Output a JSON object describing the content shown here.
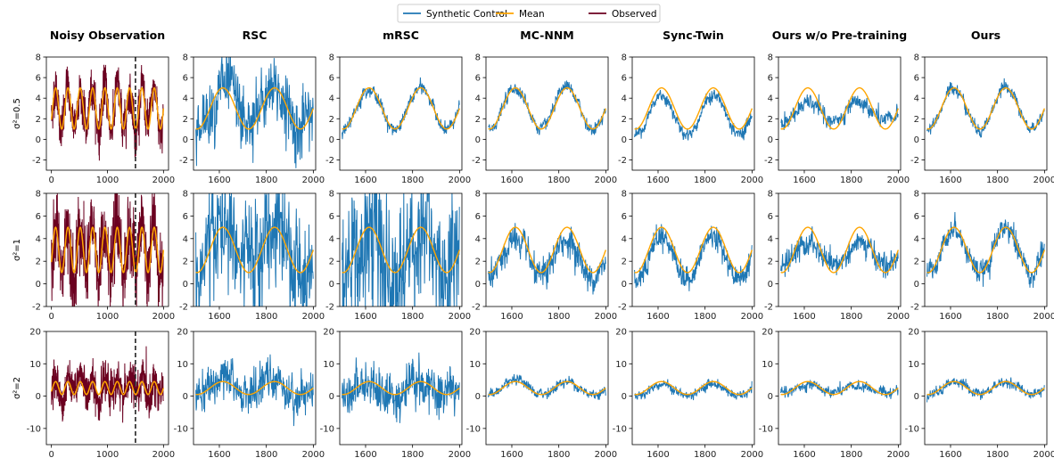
{
  "colors": {
    "synthetic": "#1f77b4",
    "mean": "#ffa500",
    "observed": "#6b0020",
    "divider": "#222222"
  },
  "legend": [
    "Synthetic Control",
    "Mean",
    "Observed"
  ],
  "columns": [
    "Noisy Observation",
    "RSC",
    "mRSC",
    "MC-NNM",
    "Sync-Twin",
    "Ours w/o Pre-training",
    "Ours"
  ],
  "rows": [
    {
      "label": "σ²=0.5",
      "ylim": [
        -3,
        8
      ],
      "yticks": [
        -2,
        0,
        2,
        4,
        6,
        8
      ]
    },
    {
      "label": "σ²=1",
      "ylim": [
        -2,
        8
      ],
      "yticks": [
        -2,
        0,
        2,
        4,
        6,
        8
      ]
    },
    {
      "label": "σ²=2",
      "ylim": [
        -15,
        20
      ],
      "yticks": [
        -10,
        0,
        10,
        20
      ]
    }
  ],
  "chart_data": {
    "type": "line",
    "layout": "grid 3x7",
    "legend_placement": "top-center",
    "first_column": {
      "xlim": [
        0,
        2000
      ],
      "xticks": [
        0,
        1000,
        2000
      ],
      "treatment_line_x": 1500
    },
    "other_columns": {
      "xlim": [
        1500,
        2000
      ],
      "xticks": [
        1600,
        1800,
        2000
      ]
    },
    "mean_curve": {
      "baseline": [
        3.0,
        3.0,
        2.5
      ],
      "amplitude": [
        2.0,
        2.0,
        2.0
      ],
      "period": 220
    },
    "noise_std": {
      "observed": [
        1.0,
        1.6,
        3.0
      ],
      "RSC": [
        1.6,
        2.4,
        3.0
      ],
      "mRSC": [
        0.3,
        3.0,
        3.5
      ],
      "MC-NNM": [
        0.3,
        0.6,
        0.8
      ],
      "Sync-Twin": [
        0.3,
        0.5,
        0.7
      ],
      "Ours w/o Pre-training": [
        0.4,
        0.5,
        0.8
      ],
      "Ours": [
        0.3,
        0.5,
        0.8
      ]
    }
  }
}
